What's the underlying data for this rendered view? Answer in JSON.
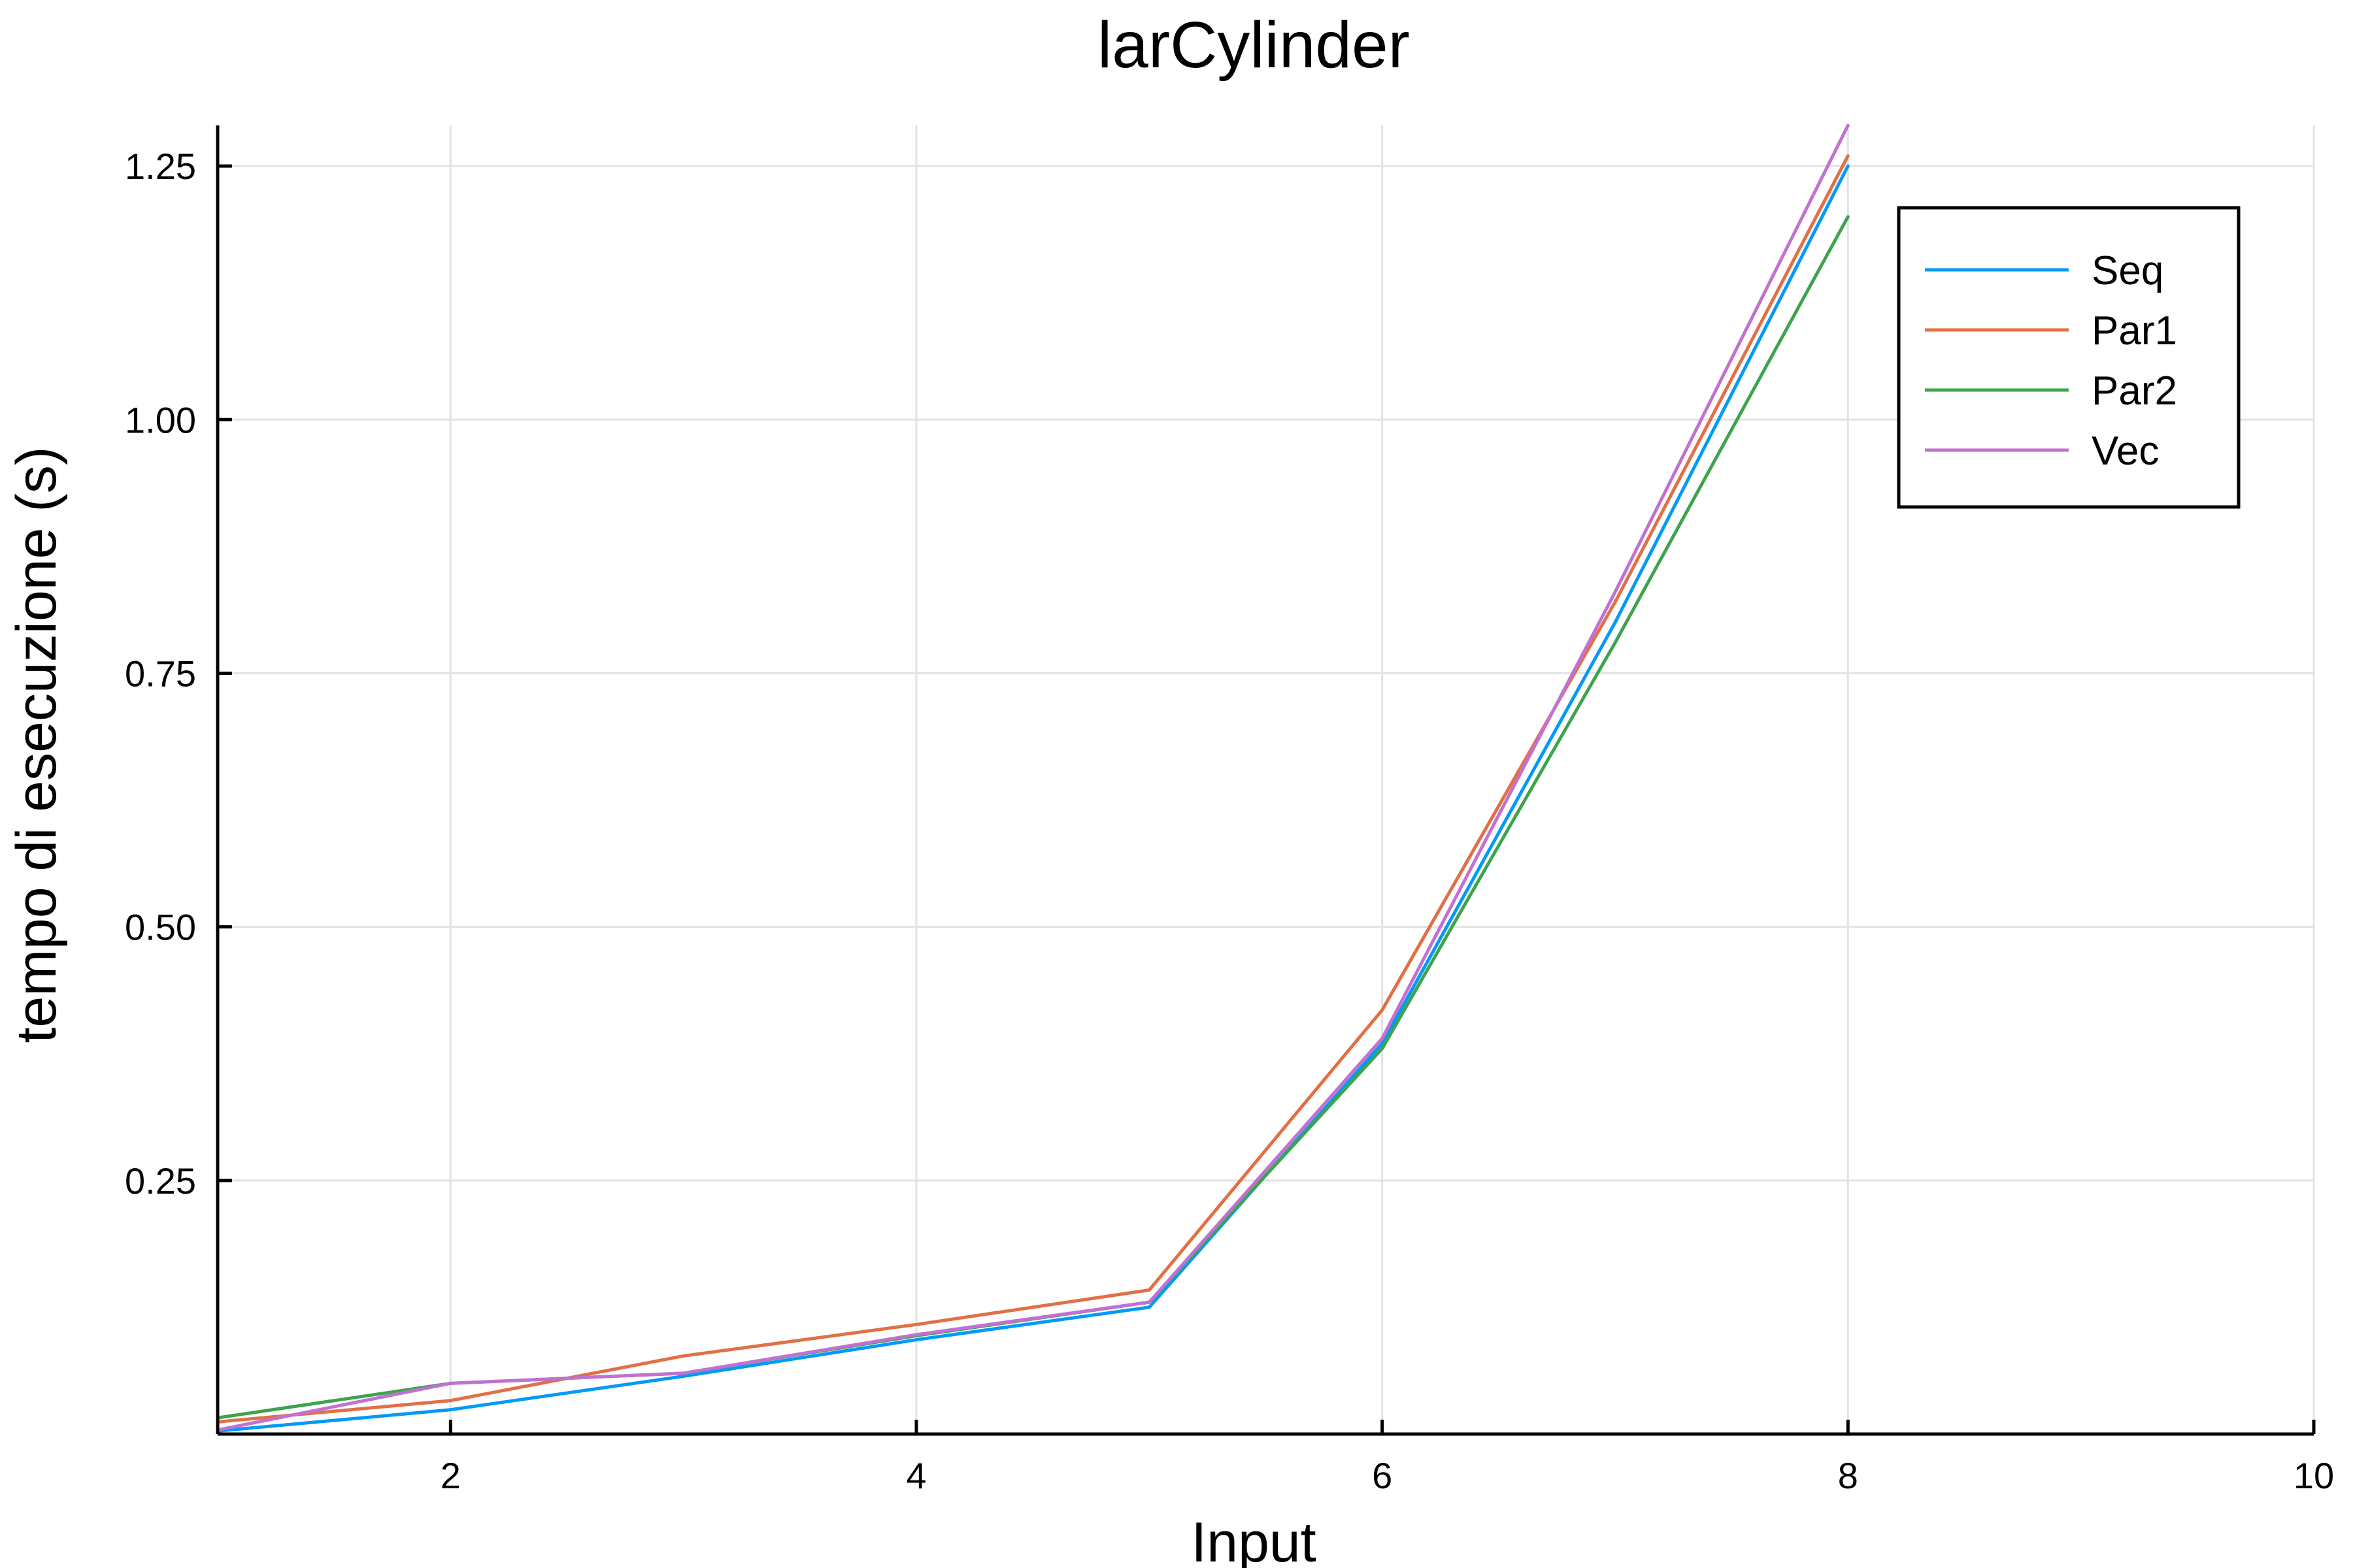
{
  "chart_data": {
    "type": "line",
    "title": "larCylinder",
    "xlabel": "Input",
    "ylabel": "tempo di esecuzione (s)",
    "xlim": [
      1,
      10
    ],
    "ylim": [
      0,
      1.29
    ],
    "xticks": [
      2,
      4,
      6,
      8,
      10
    ],
    "xtick_labels": [
      "2",
      "4",
      "6",
      "8",
      "10"
    ],
    "yticks": [
      0.25,
      0.5,
      0.75,
      1.0,
      1.25
    ],
    "ytick_labels": [
      "0.25",
      "0.50",
      "0.75",
      "1.00",
      "1.25"
    ],
    "grid": true,
    "legend_position": "top-right",
    "x": [
      1,
      2,
      3,
      4,
      5,
      6,
      7,
      8
    ],
    "series": [
      {
        "name": "Seq",
        "color": "#009AF9",
        "values": [
          0.003,
          0.024,
          0.057,
          0.093,
          0.125,
          0.385,
          0.8,
          1.25
        ]
      },
      {
        "name": "Par1",
        "color": "#E26F46",
        "values": [
          0.012,
          0.033,
          0.077,
          0.108,
          0.142,
          0.418,
          0.82,
          1.26
        ]
      },
      {
        "name": "Par2",
        "color": "#3DA44D",
        "values": [
          0.016,
          0.05,
          0.06,
          0.097,
          0.13,
          0.38,
          0.78,
          1.2
        ]
      },
      {
        "name": "Vec",
        "color": "#C271D2",
        "values": [
          0.004,
          0.05,
          0.06,
          0.098,
          0.13,
          0.39,
          0.83,
          1.29
        ]
      }
    ]
  }
}
